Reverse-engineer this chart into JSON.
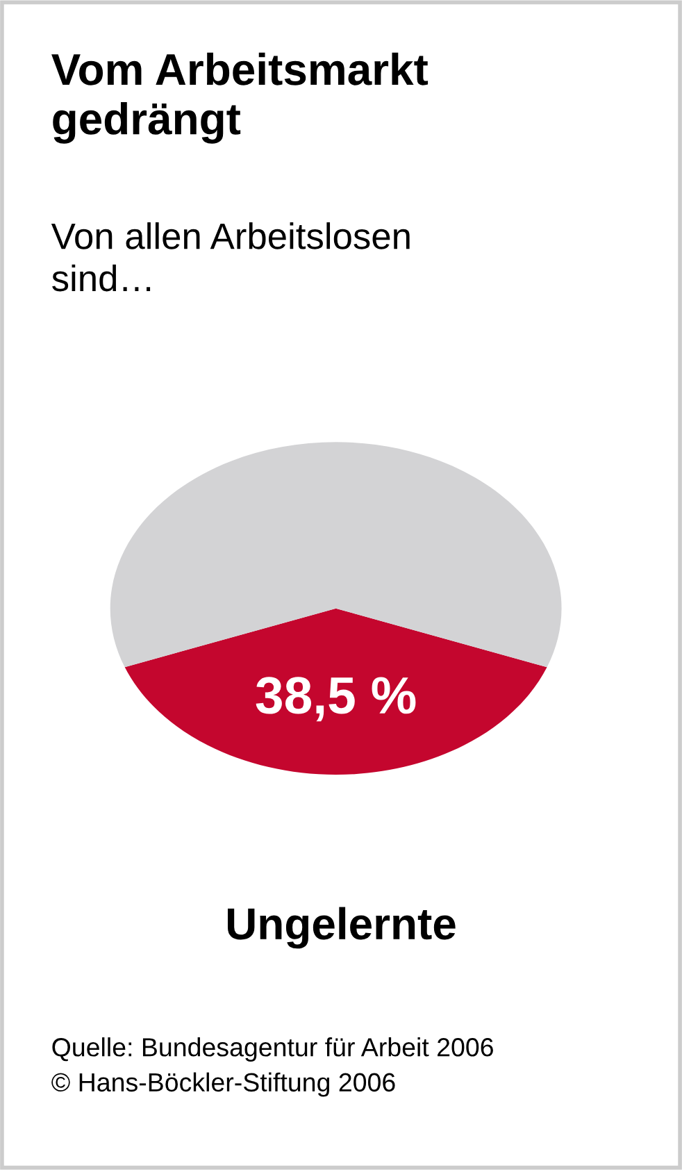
{
  "chart_data": {
    "type": "pie",
    "title": "Vom Arbeitsmarkt\ngedrängt",
    "subtitle": "Von allen Arbeitslosen\nsind…",
    "categories": [
      "Ungelernte",
      null
    ],
    "values": [
      38.5,
      61.5
    ],
    "colors": [
      "#c4062e",
      "#d3d3d5"
    ],
    "value_labels": [
      "38,5 %",
      null
    ],
    "annotations": [
      "Quelle: Bundesagentur für Arbeit 2006",
      "© Hans-Böckler-Stiftung 2006"
    ]
  }
}
